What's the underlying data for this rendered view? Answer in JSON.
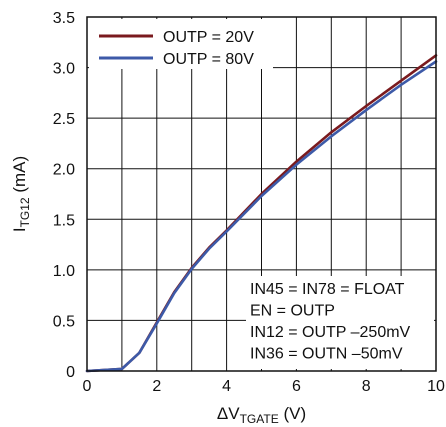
{
  "chart_data": {
    "type": "line",
    "title": "",
    "xlabel": {
      "prefix": "ΔV",
      "subscript": "TGATE",
      "suffix": " (V)"
    },
    "ylabel": {
      "prefix": "I",
      "subscript": "TG12",
      "suffix": " (mA)"
    },
    "xlim": [
      0,
      10
    ],
    "ylim": [
      0,
      3.5
    ],
    "x_ticks": [
      "0",
      "2",
      "4",
      "6",
      "8",
      "10"
    ],
    "y_ticks": [
      "0",
      "0.5",
      "1.0",
      "1.5",
      "2.0",
      "2.5",
      "3.0",
      "3.5"
    ],
    "grid": true,
    "legend_position": "top-left",
    "series": [
      {
        "name": "OUTP = 20V",
        "color": "#7a1a1e",
        "x": [
          0,
          1,
          1.5,
          2,
          2.5,
          3,
          3.5,
          4,
          5,
          6,
          7,
          8,
          9,
          10
        ],
        "y": [
          0,
          0.02,
          0.18,
          0.48,
          0.78,
          1.02,
          1.22,
          1.39,
          1.75,
          2.07,
          2.36,
          2.62,
          2.87,
          3.12
        ]
      },
      {
        "name": "OUTP = 80V",
        "color": "#3d5aa8",
        "x": [
          0,
          1,
          1.5,
          2,
          2.5,
          3,
          3.5,
          4,
          5,
          6,
          7,
          8,
          9,
          10
        ],
        "y": [
          0,
          0.02,
          0.18,
          0.47,
          0.77,
          1.01,
          1.21,
          1.38,
          1.73,
          2.04,
          2.32,
          2.58,
          2.83,
          3.06
        ]
      }
    ],
    "annotations": [
      "IN45 = IN78 = FLOAT",
      "EN = OUTP",
      "IN12 = OUTP –250mV",
      "IN36 = OUTN –50mV"
    ],
    "colors": {
      "grid": "#111111",
      "axis": "#111111"
    }
  }
}
